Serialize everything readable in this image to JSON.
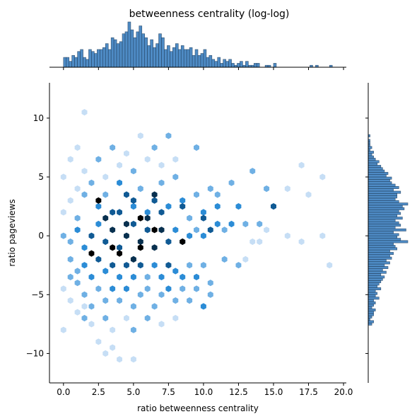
{
  "chart_data": {
    "type": "hexbin",
    "title": "betweenness centrality (log-log)",
    "xlabel": "ratio betweenness centrality",
    "ylabel": "ratio pageviews",
    "xlim": [
      -1.0,
      20.2
    ],
    "ylim": [
      -12.5,
      13.0
    ],
    "x_ticks": [
      0.0,
      2.5,
      5.0,
      7.5,
      10.0,
      12.5,
      15.0,
      17.5,
      20.0
    ],
    "x_tick_labels": [
      "0.0",
      "2.5",
      "5.0",
      "7.5",
      "10.0",
      "12.5",
      "15.0",
      "17.5",
      "20.0"
    ],
    "y_ticks": [
      -10,
      -5,
      0,
      5,
      10
    ],
    "y_tick_labels": [
      "−10",
      "−5",
      "0",
      "5",
      "10"
    ],
    "colormap": [
      "#f2f8ff",
      "#c6def5",
      "#6fb0e4",
      "#2b8cd6",
      "#105a94",
      "#08304f",
      "#000000"
    ],
    "hist_color": "#3b7fbf",
    "cells": [
      [
        0.0,
        5.0,
        1
      ],
      [
        0.5,
        6.5,
        1
      ],
      [
        1.0,
        4.0,
        1
      ],
      [
        1.5,
        5.5,
        1
      ],
      [
        2.5,
        6.5,
        2
      ],
      [
        3.0,
        5.0,
        1
      ],
      [
        3.5,
        7.5,
        2
      ],
      [
        4.0,
        6.0,
        1
      ],
      [
        4.5,
        7.0,
        1
      ],
      [
        5.0,
        5.5,
        2
      ],
      [
        5.5,
        8.5,
        1
      ],
      [
        6.0,
        6.5,
        1
      ],
      [
        6.5,
        7.5,
        2
      ],
      [
        7.0,
        6.0,
        1
      ],
      [
        7.5,
        8.5,
        2
      ],
      [
        8.0,
        6.5,
        1
      ],
      [
        9.5,
        7.5,
        2
      ],
      [
        1.5,
        10.5,
        1
      ],
      [
        1.0,
        7.5,
        1
      ],
      [
        0.0,
        2.0,
        1
      ],
      [
        0.5,
        3.0,
        1
      ],
      [
        1.0,
        1.5,
        2
      ],
      [
        1.5,
        3.5,
        2
      ],
      [
        2.0,
        4.5,
        2
      ],
      [
        2.5,
        2.5,
        3
      ],
      [
        3.0,
        3.5,
        2
      ],
      [
        3.5,
        2.0,
        4
      ],
      [
        4.0,
        4.5,
        3
      ],
      [
        4.5,
        3.5,
        4
      ],
      [
        5.0,
        2.5,
        3
      ],
      [
        5.5,
        4.0,
        2
      ],
      [
        6.0,
        2.0,
        3
      ],
      [
        6.5,
        3.0,
        4
      ],
      [
        7.0,
        4.5,
        2
      ],
      [
        7.5,
        2.5,
        3
      ],
      [
        8.0,
        5.0,
        2
      ],
      [
        8.5,
        3.0,
        3
      ],
      [
        9.0,
        1.5,
        2
      ],
      [
        9.5,
        3.5,
        2
      ],
      [
        10.0,
        2.0,
        3
      ],
      [
        10.5,
        4.0,
        2
      ],
      [
        11.0,
        3.5,
        2
      ],
      [
        12.0,
        4.5,
        2
      ],
      [
        13.5,
        5.5,
        2
      ],
      [
        14.5,
        4.0,
        2
      ],
      [
        15.0,
        2.5,
        4
      ],
      [
        16.0,
        4.0,
        1
      ],
      [
        17.0,
        6.0,
        1
      ],
      [
        17.5,
        3.5,
        1
      ],
      [
        18.5,
        5.0,
        1
      ],
      [
        2.5,
        3.0,
        6
      ],
      [
        3.0,
        1.5,
        5
      ],
      [
        4.0,
        2.0,
        4
      ],
      [
        4.5,
        1.0,
        5
      ],
      [
        5.0,
        3.0,
        4
      ],
      [
        5.5,
        1.5,
        6
      ],
      [
        6.0,
        1.5,
        5
      ],
      [
        6.5,
        3.5,
        5
      ],
      [
        7.0,
        2.0,
        4
      ],
      [
        8.5,
        2.5,
        4
      ],
      [
        10.0,
        1.5,
        4
      ],
      [
        11.0,
        2.5,
        3
      ],
      [
        12.5,
        2.5,
        3
      ],
      [
        14.0,
        1.0,
        2
      ],
      [
        0.0,
        0.0,
        2
      ],
      [
        0.5,
        -0.5,
        2
      ],
      [
        1.0,
        0.5,
        3
      ],
      [
        1.5,
        -1.0,
        3
      ],
      [
        2.0,
        0.0,
        4
      ],
      [
        2.5,
        1.0,
        3
      ],
      [
        3.0,
        -0.5,
        4
      ],
      [
        3.5,
        0.5,
        5
      ],
      [
        4.0,
        -1.0,
        4
      ],
      [
        4.5,
        0.0,
        5
      ],
      [
        5.0,
        1.0,
        4
      ],
      [
        5.5,
        -0.5,
        5
      ],
      [
        6.0,
        0.5,
        4
      ],
      [
        6.5,
        -1.0,
        5
      ],
      [
        7.0,
        0.5,
        5
      ],
      [
        7.5,
        -0.5,
        4
      ],
      [
        8.0,
        0.5,
        3
      ],
      [
        8.5,
        -0.5,
        4
      ],
      [
        9.0,
        0.0,
        3
      ],
      [
        9.5,
        0.5,
        2
      ],
      [
        10.0,
        0.0,
        3
      ],
      [
        10.5,
        0.5,
        4
      ],
      [
        11.0,
        1.0,
        3
      ],
      [
        11.5,
        0.5,
        2
      ],
      [
        12.0,
        1.0,
        3
      ],
      [
        13.0,
        1.0,
        2
      ],
      [
        13.5,
        -0.5,
        1
      ],
      [
        14.0,
        -0.5,
        1
      ],
      [
        14.5,
        0.5,
        1
      ],
      [
        16.0,
        0.0,
        1
      ],
      [
        17.0,
        -0.5,
        1
      ],
      [
        18.5,
        0.0,
        1
      ],
      [
        19.0,
        -2.5,
        1
      ],
      [
        6.5,
        0.5,
        6
      ],
      [
        2.0,
        -1.5,
        6
      ],
      [
        3.5,
        -1.0,
        6
      ],
      [
        4.0,
        -1.5,
        7
      ],
      [
        8.5,
        -0.5,
        7
      ],
      [
        5.5,
        -1.0,
        6
      ],
      [
        5.0,
        -2.0,
        5
      ],
      [
        0.5,
        -2.0,
        2
      ],
      [
        1.0,
        -3.0,
        2
      ],
      [
        1.5,
        -2.5,
        3
      ],
      [
        2.0,
        -3.5,
        3
      ],
      [
        2.5,
        -2.0,
        4
      ],
      [
        3.0,
        -3.0,
        3
      ],
      [
        3.5,
        -2.5,
        4
      ],
      [
        4.0,
        -3.5,
        3
      ],
      [
        4.5,
        -2.5,
        4
      ],
      [
        5.0,
        -3.5,
        3
      ],
      [
        5.5,
        -2.5,
        4
      ],
      [
        6.0,
        -3.5,
        2
      ],
      [
        6.5,
        -2.5,
        3
      ],
      [
        7.0,
        -3.5,
        3
      ],
      [
        7.5,
        -2.5,
        4
      ],
      [
        8.0,
        -3.0,
        3
      ],
      [
        8.5,
        -3.5,
        3
      ],
      [
        9.0,
        -2.5,
        2
      ],
      [
        9.5,
        -3.5,
        3
      ],
      [
        10.0,
        -2.5,
        2
      ],
      [
        10.5,
        -4.0,
        2
      ],
      [
        11.5,
        -2.0,
        2
      ],
      [
        12.5,
        -2.5,
        2
      ],
      [
        13.0,
        -2.0,
        1
      ],
      [
        0.0,
        -4.5,
        1
      ],
      [
        0.5,
        -5.5,
        1
      ],
      [
        1.0,
        -4.0,
        2
      ],
      [
        1.5,
        -5.0,
        2
      ],
      [
        2.0,
        -6.0,
        2
      ],
      [
        2.5,
        -4.5,
        2
      ],
      [
        3.0,
        -5.5,
        2
      ],
      [
        3.5,
        -4.5,
        3
      ],
      [
        4.0,
        -5.5,
        2
      ],
      [
        4.5,
        -4.5,
        3
      ],
      [
        5.0,
        -6.0,
        2
      ],
      [
        5.5,
        -5.0,
        2
      ],
      [
        6.0,
        -4.5,
        2
      ],
      [
        6.5,
        -6.0,
        2
      ],
      [
        7.0,
        -5.0,
        2
      ],
      [
        7.5,
        -4.5,
        3
      ],
      [
        8.0,
        -5.5,
        2
      ],
      [
        8.5,
        -4.5,
        2
      ],
      [
        9.0,
        -5.5,
        2
      ],
      [
        9.5,
        -4.5,
        2
      ],
      [
        10.0,
        -6.0,
        3
      ],
      [
        10.5,
        -5.0,
        2
      ],
      [
        2.0,
        -7.5,
        1
      ],
      [
        3.0,
        -7.0,
        2
      ],
      [
        3.5,
        -8.0,
        1
      ],
      [
        4.5,
        -7.0,
        1
      ],
      [
        5.0,
        -8.0,
        2
      ],
      [
        6.0,
        -7.0,
        2
      ],
      [
        7.0,
        -7.5,
        1
      ],
      [
        8.0,
        -7.0,
        1
      ],
      [
        1.0,
        -6.5,
        1
      ],
      [
        0.0,
        -8.0,
        1
      ],
      [
        1.5,
        -7.0,
        2
      ],
      [
        3.5,
        -9.5,
        1
      ],
      [
        4.0,
        -10.5,
        1
      ],
      [
        2.5,
        -9.0,
        1
      ],
      [
        5.0,
        -10.5,
        1
      ],
      [
        3.0,
        -10.0,
        1
      ],
      [
        1.5,
        -6.0,
        1
      ],
      [
        0.5,
        -3.5,
        2
      ]
    ],
    "marginal_x": {
      "bins": [
        0.0,
        0.2,
        0.4,
        0.6,
        0.8,
        1.0,
        1.2,
        1.4,
        1.6,
        1.8,
        2.0,
        2.2,
        2.4,
        2.6,
        2.8,
        3.0,
        3.2,
        3.4,
        3.6,
        3.8,
        4.0,
        4.2,
        4.4,
        4.6,
        4.8,
        5.0,
        5.2,
        5.4,
        5.6,
        5.8,
        6.0,
        6.2,
        6.4,
        6.6,
        6.8,
        7.0,
        7.2,
        7.4,
        7.6,
        7.8,
        8.0,
        8.2,
        8.4,
        8.6,
        8.8,
        9.0,
        9.2,
        9.4,
        9.6,
        9.8,
        10.0,
        10.2,
        10.4,
        10.6,
        10.8,
        11.0,
        11.2,
        11.4,
        11.6,
        11.8,
        12.0,
        12.2,
        12.4,
        12.6,
        12.8,
        13.0,
        13.2,
        13.4,
        13.6,
        13.8,
        14.0,
        14.2,
        14.4,
        14.6,
        14.8,
        15.0,
        15.2,
        15.4,
        15.6,
        15.8,
        16.0,
        16.2,
        16.4,
        16.6,
        16.8,
        17.0,
        17.2,
        17.4,
        17.6,
        17.8,
        18.0,
        18.2,
        18.4,
        18.6,
        18.8,
        19.0,
        19.2
      ],
      "counts": [
        5,
        5,
        3,
        6,
        5,
        8,
        9,
        5,
        4,
        9,
        8,
        7,
        9,
        9,
        10,
        12,
        9,
        15,
        14,
        12,
        13,
        17,
        18,
        23,
        19,
        15,
        18,
        21,
        17,
        15,
        11,
        14,
        10,
        12,
        17,
        15,
        9,
        11,
        8,
        10,
        12,
        9,
        11,
        9,
        9,
        10,
        6,
        9,
        6,
        7,
        9,
        5,
        6,
        4,
        3,
        5,
        2,
        4,
        3,
        4,
        2,
        1,
        2,
        3,
        1,
        3,
        1,
        1,
        2,
        2,
        0,
        0,
        1,
        1,
        0,
        2,
        0,
        0,
        0,
        0,
        0,
        0,
        0,
        0,
        0,
        0,
        0,
        0,
        1,
        0,
        1,
        0,
        0,
        0,
        0,
        1,
        0
      ]
    },
    "marginal_y": {
      "bins": [
        -7.6,
        -7.4,
        -7.2,
        -7.0,
        -6.8,
        -6.6,
        -6.4,
        -6.2,
        -6.0,
        -5.8,
        -5.6,
        -5.4,
        -5.2,
        -5.0,
        -4.8,
        -4.6,
        -4.4,
        -4.2,
        -4.0,
        -3.8,
        -3.6,
        -3.4,
        -3.2,
        -3.0,
        -2.8,
        -2.6,
        -2.4,
        -2.2,
        -2.0,
        -1.8,
        -1.6,
        -1.4,
        -1.2,
        -1.0,
        -0.8,
        -0.6,
        -0.4,
        -0.2,
        0.0,
        0.2,
        0.4,
        0.6,
        0.8,
        1.0,
        1.2,
        1.4,
        1.6,
        1.8,
        2.0,
        2.2,
        2.4,
        2.6,
        2.8,
        3.0,
        3.2,
        3.4,
        3.6,
        3.8,
        4.0,
        4.2,
        4.4,
        4.6,
        4.8,
        5.0,
        5.2,
        5.4,
        5.6,
        5.8,
        6.0,
        6.2,
        6.4,
        6.6,
        6.8,
        7.0,
        7.2,
        7.4,
        7.6,
        7.8,
        8.0,
        8.2,
        8.4
      ],
      "counts": [
        2,
        3,
        1,
        2,
        3,
        3,
        4,
        2,
        3,
        4,
        3,
        6,
        4,
        5,
        4,
        7,
        5,
        6,
        7,
        8,
        9,
        7,
        10,
        8,
        11,
        9,
        12,
        10,
        13,
        12,
        14,
        12,
        16,
        15,
        14,
        22,
        18,
        16,
        17,
        14,
        21,
        15,
        18,
        17,
        15,
        19,
        16,
        18,
        17,
        20,
        19,
        22,
        17,
        15,
        16,
        16,
        18,
        14,
        17,
        15,
        13,
        12,
        13,
        10,
        11,
        9,
        8,
        7,
        5,
        6,
        4,
        3,
        2,
        3,
        1,
        2,
        1,
        1,
        1,
        0,
        1
      ]
    }
  }
}
